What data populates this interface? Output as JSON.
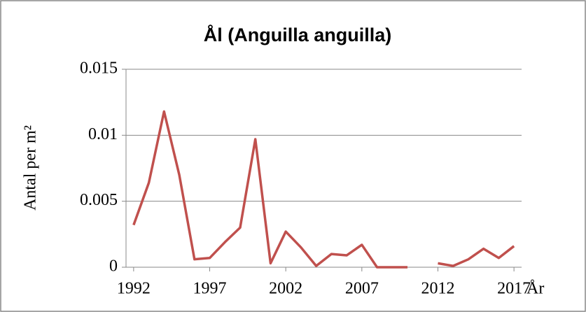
{
  "chart_data": {
    "type": "line",
    "title": "Ål (Anguilla anguilla)",
    "y_label": "Antal per m²",
    "x_label": "År",
    "x": [
      1992,
      1993,
      1994,
      1995,
      1996,
      1997,
      1998,
      1999,
      2000,
      2001,
      2002,
      2003,
      2004,
      2005,
      2006,
      2007,
      2008,
      2009,
      2010,
      2011,
      2012,
      2013,
      2014,
      2015,
      2016,
      2017
    ],
    "series": [
      {
        "name": "Ål",
        "color": "#c0504d",
        "values": [
          0.0032,
          0.0064,
          0.0118,
          0.007,
          0.0006,
          0.0007,
          0.0019,
          0.003,
          0.0097,
          0.0003,
          0.0027,
          0.0015,
          0.0001,
          0.001,
          0.0009,
          0.0017,
          0,
          0,
          0,
          null,
          0.0003,
          0.0001,
          0.0006,
          0.0014,
          0.0007,
          0.0016
        ]
      }
    ],
    "xlim": [
      1992,
      2017
    ],
    "xticks": [
      1992,
      1997,
      2002,
      2007,
      2012,
      2017
    ],
    "ylim": [
      0,
      0.015
    ],
    "yticks": [
      0,
      0.005,
      0.01,
      0.015
    ],
    "grid": true
  }
}
